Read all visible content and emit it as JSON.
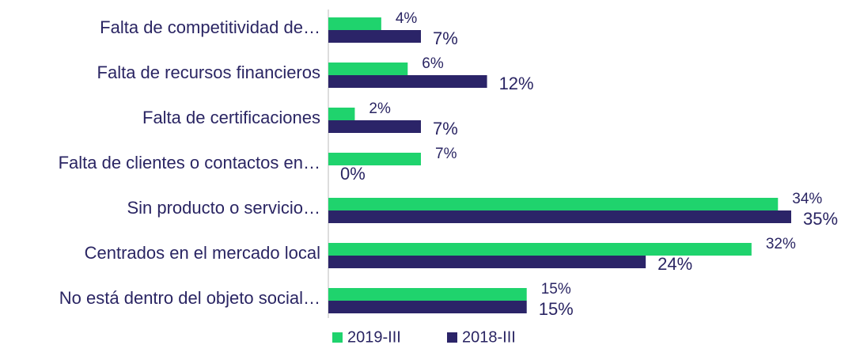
{
  "chart_data": {
    "type": "bar",
    "orientation": "horizontal",
    "categories": [
      "Falta de competitividad de…",
      "Falta de recursos financieros",
      "Falta de certificaciones",
      "Falta de clientes o contactos en…",
      "Sin producto o servicio…",
      "Centrados en el mercado local",
      "No está dentro del objeto social…"
    ],
    "series": [
      {
        "name": "2019-III",
        "color": "#1fd36d",
        "values": [
          4,
          6,
          2,
          7,
          34,
          32,
          15
        ],
        "value_labels": [
          "4%",
          "6%",
          "2%",
          "7%",
          "34%",
          "32%",
          "15%"
        ]
      },
      {
        "name": "2018-III",
        "color": "#2b2468",
        "values": [
          7,
          12,
          7,
          0,
          35,
          24,
          15
        ],
        "value_labels": [
          "7%",
          "12%",
          "7%",
          "0%",
          "35%",
          "24%",
          "15%"
        ]
      }
    ]
  }
}
